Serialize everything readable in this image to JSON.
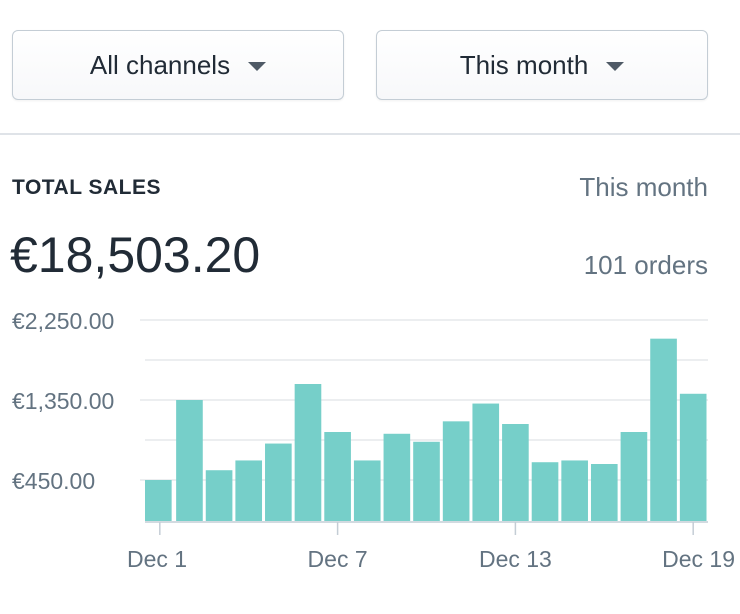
{
  "filters": {
    "channel": {
      "label": "All channels",
      "icon": "caret-down-icon"
    },
    "period": {
      "label": "This month",
      "icon": "caret-down-icon"
    }
  },
  "summary": {
    "title": "TOTAL SALES",
    "period_label": "This month",
    "total": "€18,503.20",
    "orders": "101 orders"
  },
  "colors": {
    "bar": "#76cfc9",
    "grid": "#d9dde1",
    "axis": "#c4cdd5",
    "text": "#637381"
  },
  "chart_data": {
    "type": "bar",
    "categories": [
      "Dec 1",
      "Dec 2",
      "Dec 3",
      "Dec 4",
      "Dec 5",
      "Dec 6",
      "Dec 7",
      "Dec 8",
      "Dec 9",
      "Dec 10",
      "Dec 11",
      "Dec 12",
      "Dec 13",
      "Dec 14",
      "Dec 15",
      "Dec 16",
      "Dec 17",
      "Dec 18",
      "Dec 19"
    ],
    "x_tick_labels": [
      "Dec 1",
      "",
      "",
      "",
      "",
      "",
      "Dec 7",
      "",
      "",
      "",
      "",
      "",
      "Dec 13",
      "",
      "",
      "",
      "",
      "",
      "Dec 19"
    ],
    "values": [
      450,
      1350,
      560,
      670,
      860,
      1530,
      990,
      670,
      970,
      880,
      1110,
      1310,
      1080,
      650,
      670,
      630,
      990,
      2040,
      1420
    ],
    "y_ticks": [
      450,
      1350,
      2250
    ],
    "y_tick_labels": [
      "€450.00",
      "€1,350.00",
      "€2,250.00"
    ],
    "ylim": [
      0,
      2250
    ],
    "grid": true,
    "title": "",
    "xlabel": "",
    "ylabel": ""
  }
}
